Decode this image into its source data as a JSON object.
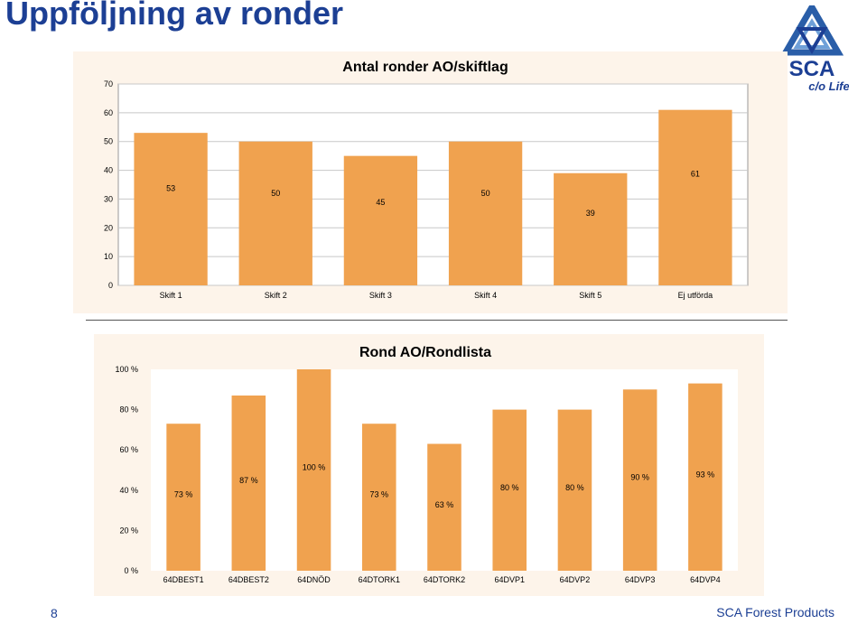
{
  "page": {
    "title": "Uppföljning av ronder"
  },
  "logo": {
    "brand": "SCA",
    "tagline": "c/o Life",
    "icon": "sca-triangle-logo"
  },
  "chart_data": [
    {
      "type": "bar",
      "title": "Antal ronder AO/skiftlag",
      "categories": [
        "Skift 1",
        "Skift 2",
        "Skift 3",
        "Skift 4",
        "Skift 5",
        "Ej utförda"
      ],
      "values": [
        53,
        50,
        45,
        50,
        39,
        61
      ],
      "data_labels": [
        "53",
        "50",
        "45",
        "50",
        "39",
        "61"
      ],
      "ylim": [
        0,
        70
      ],
      "yticks": [
        0,
        10,
        20,
        30,
        40,
        50,
        60,
        70
      ],
      "ytick_labels": [
        "0",
        "10",
        "20",
        "30",
        "40",
        "50",
        "60",
        "70"
      ],
      "xlabel": "",
      "ylabel": "",
      "grid": true,
      "bar_color": "#f0a24f"
    },
    {
      "type": "bar",
      "title": "Rond AO/Rondlista",
      "categories": [
        "64DBEST1",
        "64DBEST2",
        "64DNÖD",
        "64DTORK1",
        "64DTORK2",
        "64DVP1",
        "64DVP2",
        "64DVP3",
        "64DVP4"
      ],
      "values": [
        73,
        87,
        100,
        73,
        63,
        80,
        80,
        90,
        93
      ],
      "data_labels": [
        "73 %",
        "87 %",
        "100 %",
        "73 %",
        "63 %",
        "80 %",
        "80 %",
        "90 %",
        "93 %"
      ],
      "ylim": [
        0,
        100
      ],
      "yticks": [
        0,
        20,
        40,
        60,
        80,
        100
      ],
      "ytick_labels": [
        "0 %",
        "20 %",
        "40 %",
        "60 %",
        "80 %",
        "100 %"
      ],
      "xlabel": "",
      "ylabel": "",
      "grid": false,
      "bar_color": "#f0a24f"
    }
  ],
  "footer": {
    "page_number": "8",
    "company": "SCA Forest Products"
  }
}
